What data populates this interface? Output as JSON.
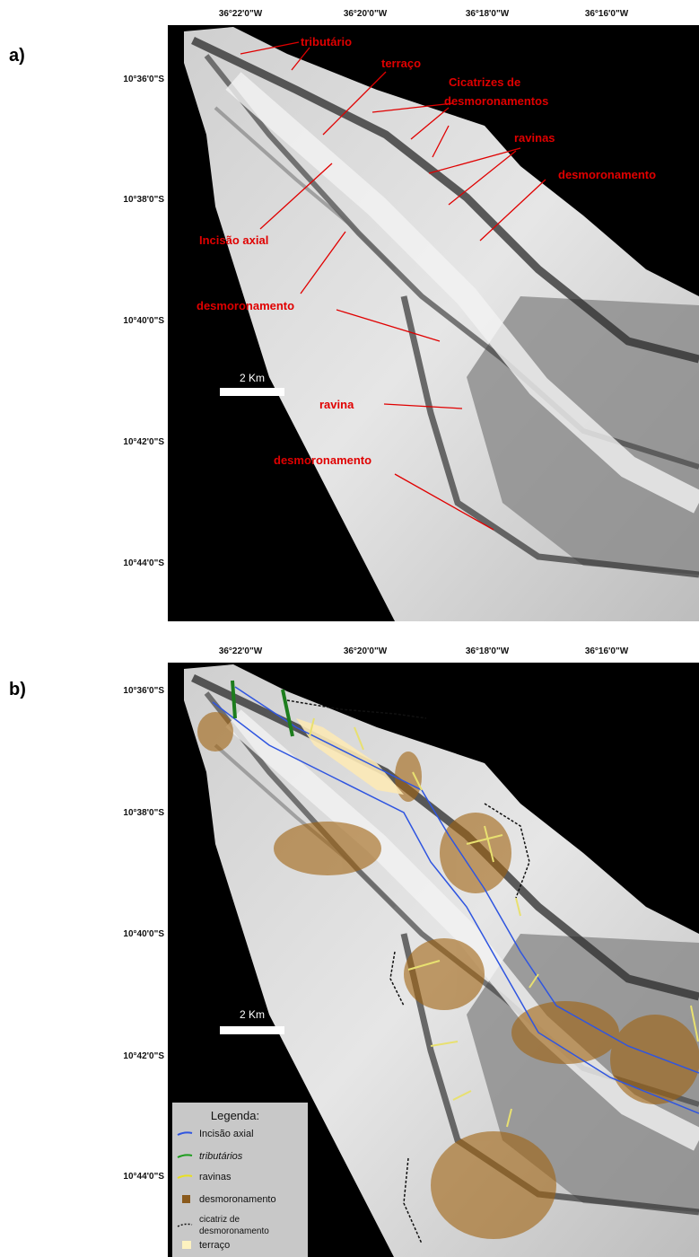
{
  "panels": [
    {
      "label": "a)",
      "lon_labels": [
        "36°22'0\"W",
        "36°20'0\"W",
        "36°18'0\"W",
        "36°16'0\"W"
      ],
      "lat_labels": [
        "10°36'0\"S",
        "10°38'0\"S",
        "10°40'0\"S",
        "10°42'0\"S",
        "10°44'0\"S"
      ],
      "scale_bar": "2 Km",
      "annotations": [
        "tributário",
        "terraço",
        "Cicatrizes de",
        "desmoronamentos",
        "ravinas",
        "desmoronamento",
        "Incisão axial",
        "desmoronamento",
        "ravina",
        "desmoronamento"
      ]
    },
    {
      "label": "b)",
      "lon_labels": [
        "36°22'0\"W",
        "36°20'0\"W",
        "36°18'0\"W",
        "36°16'0\"W"
      ],
      "lat_labels": [
        "10°36'0\"S",
        "10°38'0\"S",
        "10°40'0\"S",
        "10°42'0\"S",
        "10°44'0\"S"
      ],
      "scale_bar": "2 Km",
      "legend": {
        "title": "Legenda:",
        "items": [
          "Incisão axial",
          "tributários",
          "ravinas",
          "desmoronamento",
          "cicatriz de",
          "desmoronamento",
          "terraço"
        ]
      }
    }
  ]
}
